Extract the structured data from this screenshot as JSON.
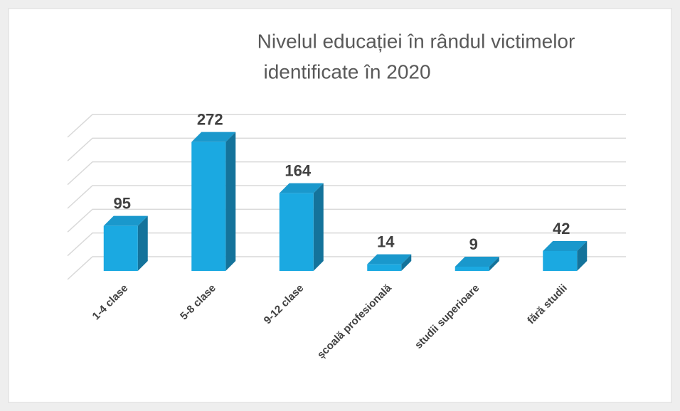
{
  "chart_data": {
    "type": "bar3d",
    "title": "Nivelul educației în rândul victimelor",
    "subtitle": "identificate în 2020",
    "categories": [
      "1-4 clase",
      "5-8 clase",
      "9-12 clase",
      "școală profesională",
      "studii superioare",
      "fără studii"
    ],
    "values": [
      95,
      272,
      164,
      14,
      9,
      42
    ],
    "color": "#1ba9e1",
    "ylim": [
      0,
      300
    ],
    "yticks": [
      0,
      50,
      100,
      150,
      200,
      250,
      300
    ],
    "grid": true
  }
}
